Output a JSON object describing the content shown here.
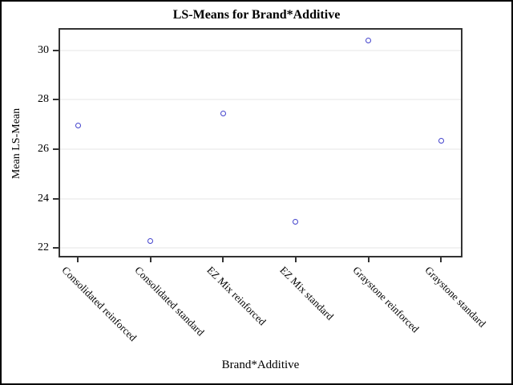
{
  "title": "LS-Means for Brand*Additive",
  "y_axis": {
    "label": "Mean LS-Mean",
    "tick_labels": [
      "30",
      "28",
      "26",
      "24",
      "22"
    ]
  },
  "x_axis": {
    "label": "Brand*Additive"
  },
  "chart_data": {
    "type": "scatter",
    "title": "LS-Means for Brand*Additive",
    "xlabel": "Brand*Additive",
    "ylabel": "Mean LS-Mean",
    "categories": [
      "Consolidated reinforced",
      "Consolidated standard",
      "EZ Mix reinforced",
      "EZ Mix standard",
      "Graystone reinforced",
      "Graystone standard"
    ],
    "values": [
      26.96,
      22.29,
      27.46,
      23.05,
      30.41,
      26.33
    ],
    "yticks": [
      22,
      24,
      26,
      28,
      30
    ],
    "ylim": [
      21.62,
      30.9
    ],
    "grid": true,
    "legend_position": "none",
    "marker_shape": "open-circle",
    "marker_color": "#4343cc"
  },
  "colors": {
    "marker": "#4343cc",
    "frame": "#333333",
    "gridline": "#f2f2f2",
    "background": "#ffffff",
    "outer_border": "#000000",
    "text": "#000000"
  }
}
